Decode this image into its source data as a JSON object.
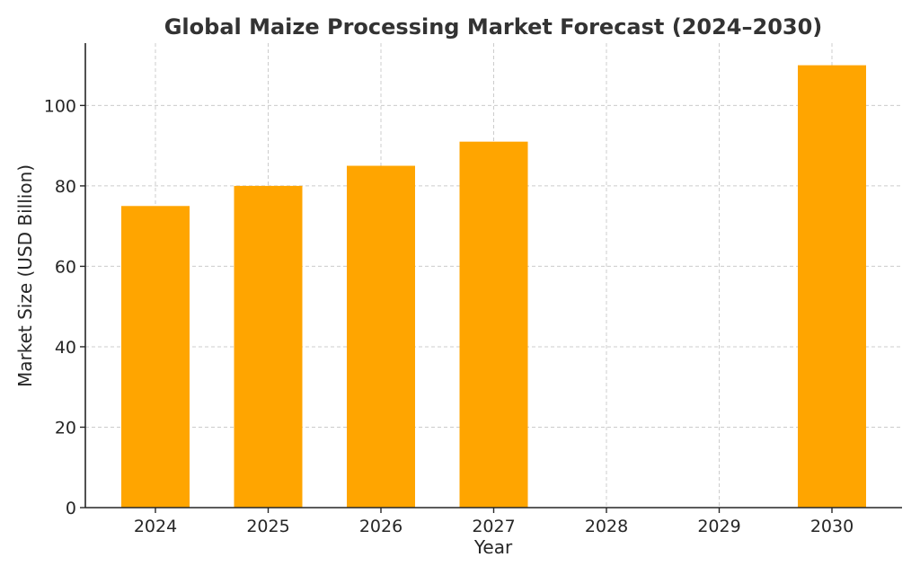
{
  "chart_data": {
    "type": "bar",
    "title": "Global Maize Processing Market Forecast (2024–2030)",
    "xlabel": "Year",
    "ylabel": "Market Size (USD Billion)",
    "categories": [
      "2024",
      "2025",
      "2026",
      "2027",
      "2028",
      "2029",
      "2030"
    ],
    "values": [
      75,
      80,
      85,
      91,
      null,
      null,
      110
    ],
    "ylim": [
      0,
      115.5
    ],
    "yticks": [
      0,
      20,
      40,
      60,
      80,
      100
    ],
    "grid": true,
    "bar_color": "#FFA500"
  }
}
